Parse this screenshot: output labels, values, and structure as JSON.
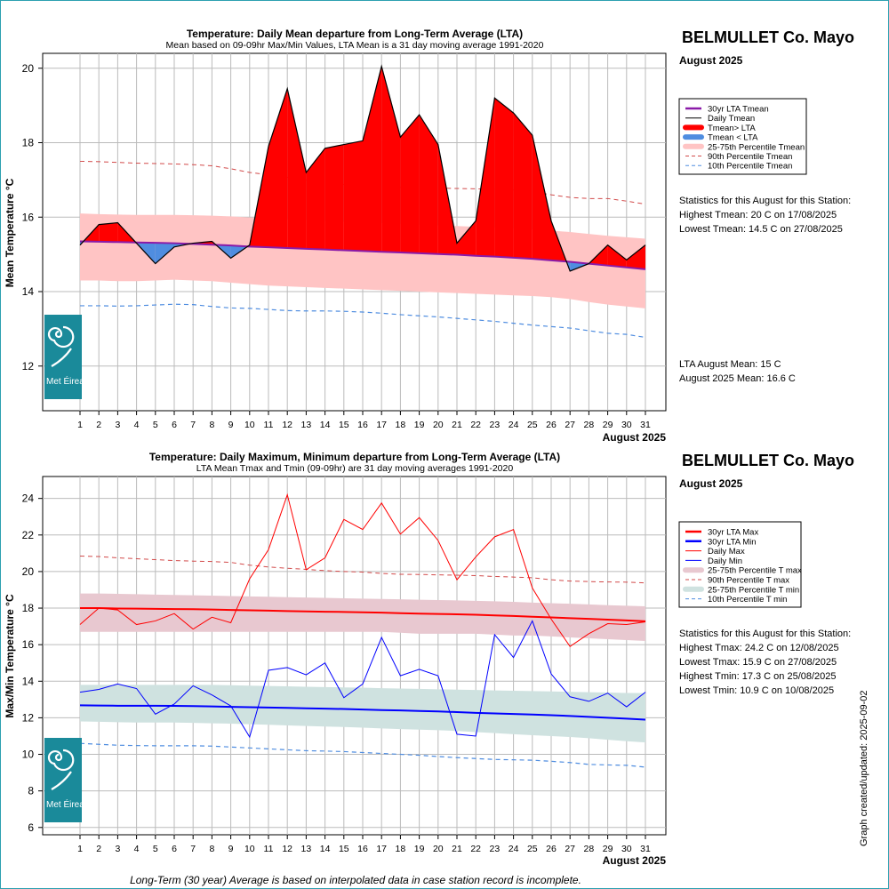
{
  "top": {
    "title": "Temperature: Daily Mean departure from Long-Term Average (LTA)",
    "subtitle": "Mean based on 09-09hr Max/Min Values, LTA Mean is a 31 day moving average 1991-2020",
    "ylabel": "Mean Temperature °C",
    "xlabel": "August 2025",
    "station": "BELMULLET Co. Mayo",
    "month": "August 2025",
    "legend": [
      "30yr LTA Tmean",
      "Daily Tmean",
      "Tmean> LTA",
      "Tmean < LTA",
      "25-75th Percentile Tmean",
      "90th Percentile Tmean",
      "10th Percentile Tmean"
    ],
    "stats_header": "Statistics for this August for this Station:",
    "stats": [
      "Highest Tmean: 20 C on 17/08/2025",
      "Lowest Tmean: 14.5 C on 27/08/2025"
    ],
    "lta_lines": [
      "LTA August Mean: 15 C",
      "August 2025 Mean: 16.6 C"
    ],
    "logo": "Met Éireann"
  },
  "bottom": {
    "title": "Temperature: Daily Maximum, Minimum departure from Long-Term Average (LTA)",
    "subtitle": "LTA Mean Tmax and Tmin (09-09hr) are 31 day moving averages 1991-2020",
    "ylabel": "Max/Min Temperature °C",
    "xlabel": "August 2025",
    "station": "BELMULLET Co. Mayo",
    "month": "August 2025",
    "legend": [
      "30yr LTA Max",
      "30yr LTA Min",
      "Daily Max",
      "Daily Min",
      "25-75th Percentile T max",
      "90th Percentile T max",
      "25-75th Percentile T min",
      "10th Percentile T min"
    ],
    "stats_header": "Statistics for this August for this Station:",
    "stats": [
      "Highest Tmax: 24.2 C on 12/08/2025",
      "Lowest Tmax: 15.9 C on 27/08/2025",
      "Highest Tmin: 17.3 C on 25/08/2025",
      "Lowest Tmin: 10.9 C on 10/08/2025"
    ],
    "logo": "Met Éireann"
  },
  "footer": "Long-Term (30 year) Average is based on interpolated data in case station record is incomplete.",
  "created": "Graph created/updated:  2025-09-02",
  "colors": {
    "lta_mean": "#8a1aa8",
    "above": "#ff0000",
    "below": "#4f8de0",
    "band_mean": "#ffc4c4",
    "p90": "#d24a4a",
    "p10": "#4f8de0",
    "max": "#ff0000",
    "min": "#0000ff",
    "band_max": "#e8c8d0",
    "band_min": "#cfe2e0",
    "grid": "#bbbbbb",
    "logo": "#1a8a9a"
  },
  "chart_data": [
    {
      "type": "area",
      "title": "Temperature: Daily Mean departure from Long-Term Average (LTA)",
      "xlabel": "August 2025",
      "ylabel": "Mean Temperature °C",
      "x": [
        1,
        2,
        3,
        4,
        5,
        6,
        7,
        8,
        9,
        10,
        11,
        12,
        13,
        14,
        15,
        16,
        17,
        18,
        19,
        20,
        21,
        22,
        23,
        24,
        25,
        26,
        27,
        28,
        29,
        30,
        31
      ],
      "ylim": [
        10.8,
        20.4
      ],
      "yticks": [
        12,
        14,
        16,
        18,
        20
      ],
      "grid": true,
      "legend_position": "right",
      "series": [
        {
          "name": "Daily Tmean",
          "values": [
            15.25,
            15.8,
            15.85,
            15.3,
            14.75,
            15.2,
            15.3,
            15.35,
            14.9,
            15.25,
            17.9,
            19.45,
            17.2,
            17.85,
            17.95,
            18.05,
            20.05,
            18.15,
            18.75,
            17.95,
            15.3,
            15.9,
            19.2,
            18.8,
            18.2,
            15.9,
            14.55,
            14.75,
            15.25,
            14.85,
            15.25
          ]
        },
        {
          "name": "30yr LTA Tmean",
          "values": [
            15.35,
            15.34,
            15.33,
            15.32,
            15.31,
            15.3,
            15.28,
            15.26,
            15.24,
            15.21,
            15.19,
            15.17,
            15.15,
            15.13,
            15.11,
            15.09,
            15.07,
            15.05,
            15.03,
            15.01,
            14.99,
            14.96,
            14.94,
            14.91,
            14.88,
            14.84,
            14.8,
            14.75,
            14.7,
            14.65,
            14.6
          ]
        },
        {
          "name": "25th Percentile Tmean",
          "values": [
            14.3,
            14.3,
            14.28,
            14.28,
            14.3,
            14.32,
            14.3,
            14.28,
            14.24,
            14.2,
            14.16,
            14.14,
            14.12,
            14.1,
            14.08,
            14.06,
            14.04,
            14.02,
            14.0,
            13.98,
            13.96,
            13.94,
            13.92,
            13.9,
            13.88,
            13.85,
            13.8,
            13.72,
            13.65,
            13.6,
            13.55
          ]
        },
        {
          "name": "75th Percentile Tmean",
          "values": [
            16.1,
            16.08,
            16.07,
            16.06,
            16.06,
            16.06,
            16.05,
            16.04,
            16.02,
            15.99,
            15.96,
            15.94,
            15.92,
            15.9,
            15.88,
            15.86,
            15.84,
            15.82,
            15.8,
            15.78,
            15.76,
            15.74,
            15.72,
            15.7,
            15.67,
            15.64,
            15.6,
            15.55,
            15.5,
            15.46,
            15.42
          ]
        },
        {
          "name": "90th Percentile Tmean",
          "values": [
            17.5,
            17.49,
            17.47,
            17.45,
            17.44,
            17.43,
            17.41,
            17.38,
            17.3,
            17.2,
            17.14,
            17.07,
            17.0,
            16.94,
            16.88,
            16.84,
            16.82,
            16.8,
            16.79,
            16.78,
            16.77,
            16.76,
            16.75,
            16.73,
            16.69,
            16.6,
            16.53,
            16.5,
            16.5,
            16.43,
            16.35
          ]
        },
        {
          "name": "10th Percentile Tmean",
          "values": [
            13.62,
            13.62,
            13.61,
            13.62,
            13.64,
            13.66,
            13.65,
            13.6,
            13.56,
            13.55,
            13.52,
            13.49,
            13.48,
            13.48,
            13.47,
            13.45,
            13.42,
            13.38,
            13.35,
            13.32,
            13.28,
            13.24,
            13.2,
            13.15,
            13.1,
            13.06,
            13.02,
            12.95,
            12.88,
            12.85,
            12.77
          ]
        }
      ]
    },
    {
      "type": "line",
      "title": "Temperature: Daily Maximum, Minimum departure from Long-Term Average (LTA)",
      "xlabel": "August 2025",
      "ylabel": "Max/Min Temperature °C",
      "x": [
        1,
        2,
        3,
        4,
        5,
        6,
        7,
        8,
        9,
        10,
        11,
        12,
        13,
        14,
        15,
        16,
        17,
        18,
        19,
        20,
        21,
        22,
        23,
        24,
        25,
        26,
        27,
        28,
        29,
        30,
        31
      ],
      "ylim": [
        5.6,
        25.2
      ],
      "yticks": [
        6,
        8,
        10,
        12,
        14,
        16,
        18,
        20,
        22,
        24
      ],
      "grid": true,
      "legend_position": "right",
      "series": [
        {
          "name": "Daily Max",
          "values": [
            17.1,
            18.0,
            17.9,
            17.1,
            17.3,
            17.7,
            16.85,
            17.5,
            17.2,
            19.6,
            21.2,
            24.2,
            20.1,
            20.75,
            22.85,
            22.3,
            23.75,
            22.05,
            22.95,
            21.7,
            19.55,
            20.8,
            21.9,
            22.3,
            19.1,
            17.4,
            15.9,
            16.6,
            17.15,
            17.1,
            17.25
          ]
        },
        {
          "name": "Daily Min",
          "values": [
            13.4,
            13.55,
            13.85,
            13.6,
            12.2,
            12.75,
            13.75,
            13.25,
            12.65,
            10.95,
            14.6,
            14.75,
            14.35,
            15.0,
            13.1,
            13.85,
            16.4,
            14.3,
            14.65,
            14.3,
            11.1,
            11.0,
            16.55,
            15.3,
            17.3,
            14.4,
            13.15,
            12.9,
            13.35,
            12.6,
            13.4
          ]
        },
        {
          "name": "30yr LTA Max",
          "values": [
            18.0,
            18.0,
            17.98,
            17.97,
            17.96,
            17.95,
            17.94,
            17.92,
            17.9,
            17.88,
            17.86,
            17.84,
            17.82,
            17.8,
            17.79,
            17.77,
            17.75,
            17.72,
            17.7,
            17.68,
            17.66,
            17.64,
            17.6,
            17.57,
            17.53,
            17.49,
            17.45,
            17.41,
            17.37,
            17.33,
            17.28
          ]
        },
        {
          "name": "30yr LTA Min",
          "values": [
            12.68,
            12.67,
            12.66,
            12.66,
            12.66,
            12.65,
            12.64,
            12.62,
            12.6,
            12.58,
            12.56,
            12.54,
            12.52,
            12.5,
            12.48,
            12.45,
            12.42,
            12.4,
            12.37,
            12.35,
            12.31,
            12.27,
            12.24,
            12.21,
            12.18,
            12.14,
            12.1,
            12.05,
            12.0,
            11.95,
            11.9
          ]
        },
        {
          "name": "25th Percentile T max",
          "values": [
            16.7,
            16.7,
            16.7,
            16.7,
            16.7,
            16.7,
            16.7,
            16.7,
            16.7,
            16.7,
            16.7,
            16.7,
            16.7,
            16.7,
            16.7,
            16.7,
            16.7,
            16.65,
            16.6,
            16.6,
            16.6,
            16.6,
            16.55,
            16.5,
            16.5,
            16.45,
            16.4,
            16.35,
            16.3,
            16.25,
            16.2
          ]
        },
        {
          "name": "75th Percentile T max",
          "values": [
            18.8,
            18.8,
            18.78,
            18.76,
            18.74,
            18.72,
            18.7,
            18.68,
            18.66,
            18.64,
            18.62,
            18.6,
            18.58,
            18.56,
            18.54,
            18.52,
            18.5,
            18.48,
            18.46,
            18.44,
            18.42,
            18.4,
            18.37,
            18.34,
            18.3,
            18.27,
            18.24,
            18.2,
            18.16,
            18.13,
            18.1
          ]
        },
        {
          "name": "90th Percentile T max",
          "values": [
            20.85,
            20.82,
            20.75,
            20.7,
            20.65,
            20.6,
            20.57,
            20.55,
            20.5,
            20.35,
            20.25,
            20.18,
            20.12,
            20.05,
            20.0,
            19.97,
            19.9,
            19.85,
            19.84,
            19.82,
            19.8,
            19.78,
            19.73,
            19.7,
            19.66,
            19.55,
            19.48,
            19.45,
            19.43,
            19.42,
            19.38
          ]
        },
        {
          "name": "25th Percentile T min",
          "values": [
            11.8,
            11.78,
            11.76,
            11.74,
            11.74,
            11.74,
            11.72,
            11.7,
            11.68,
            11.65,
            11.62,
            11.58,
            11.55,
            11.52,
            11.5,
            11.46,
            11.42,
            11.38,
            11.35,
            11.32,
            11.28,
            11.22,
            11.16,
            11.1,
            11.05,
            11.0,
            10.95,
            10.88,
            10.8,
            10.72,
            10.65
          ]
        },
        {
          "name": "75th Percentile T min",
          "values": [
            13.8,
            13.8,
            13.8,
            13.8,
            13.8,
            13.8,
            13.8,
            13.8,
            13.78,
            13.76,
            13.74,
            13.72,
            13.7,
            13.68,
            13.66,
            13.65,
            13.62,
            13.6,
            13.58,
            13.56,
            13.54,
            13.52,
            13.5,
            13.48,
            13.46,
            13.44,
            13.42,
            13.4,
            13.38,
            13.36,
            13.35
          ]
        },
        {
          "name": "10th Percentile T min",
          "values": [
            10.6,
            10.55,
            10.5,
            10.48,
            10.47,
            10.47,
            10.47,
            10.45,
            10.4,
            10.35,
            10.3,
            10.25,
            10.2,
            10.18,
            10.15,
            10.1,
            10.05,
            10.0,
            9.95,
            9.88,
            9.82,
            9.77,
            9.72,
            9.7,
            9.68,
            9.62,
            9.55,
            9.45,
            9.42,
            9.4,
            9.3
          ]
        }
      ]
    }
  ]
}
